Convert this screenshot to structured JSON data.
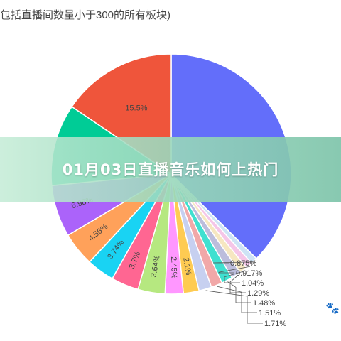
{
  "chart_data": {
    "type": "pie",
    "title": "包括直播间数量小于300的所有板块)",
    "slices": [
      {
        "value": 37.4,
        "label": "",
        "color": "#636efa"
      },
      {
        "value": 0.875,
        "label": "0.875%",
        "color": "#cde3f5"
      },
      {
        "value": 0.917,
        "label": "0.917%",
        "color": "#f5c6e8"
      },
      {
        "value": 1.04,
        "label": "1.04%",
        "color": "#f6e7c1"
      },
      {
        "value": 1.29,
        "label": "1.29%",
        "color": "#bcbddc"
      },
      {
        "value": 1.48,
        "label": "1.48%",
        "color": "#3fe0d0"
      },
      {
        "value": 1.51,
        "label": "1.51%",
        "color": "#f1a8a8"
      },
      {
        "value": 1.71,
        "label": "1.71%",
        "color": "#c7d0f0"
      },
      {
        "value": 2.1,
        "label": "2.1%",
        "color": "#fecb52"
      },
      {
        "value": 2.45,
        "label": "2.45%",
        "color": "#ff97ff"
      },
      {
        "value": 3.64,
        "label": "3.64%",
        "color": "#b6e880"
      },
      {
        "value": 3.7,
        "label": "3.7%",
        "color": "#ff6692"
      },
      {
        "value": 3.74,
        "label": "3.74%",
        "color": "#19d3f3"
      },
      {
        "value": 4.56,
        "label": "4.56%",
        "color": "#ffa15a"
      },
      {
        "value": 6.98,
        "label": "6.98%",
        "color": "#ab63fa"
      },
      {
        "value": 11.0,
        "label": "",
        "color": "#00cc96"
      },
      {
        "value": 15.5,
        "label": "15.5%",
        "color": "#ef553b"
      }
    ]
  },
  "banner": {
    "text": "01月03日直播音乐如何上热门"
  },
  "watermark": {
    "icon": "paw-icon",
    "glyph": "🐾"
  }
}
